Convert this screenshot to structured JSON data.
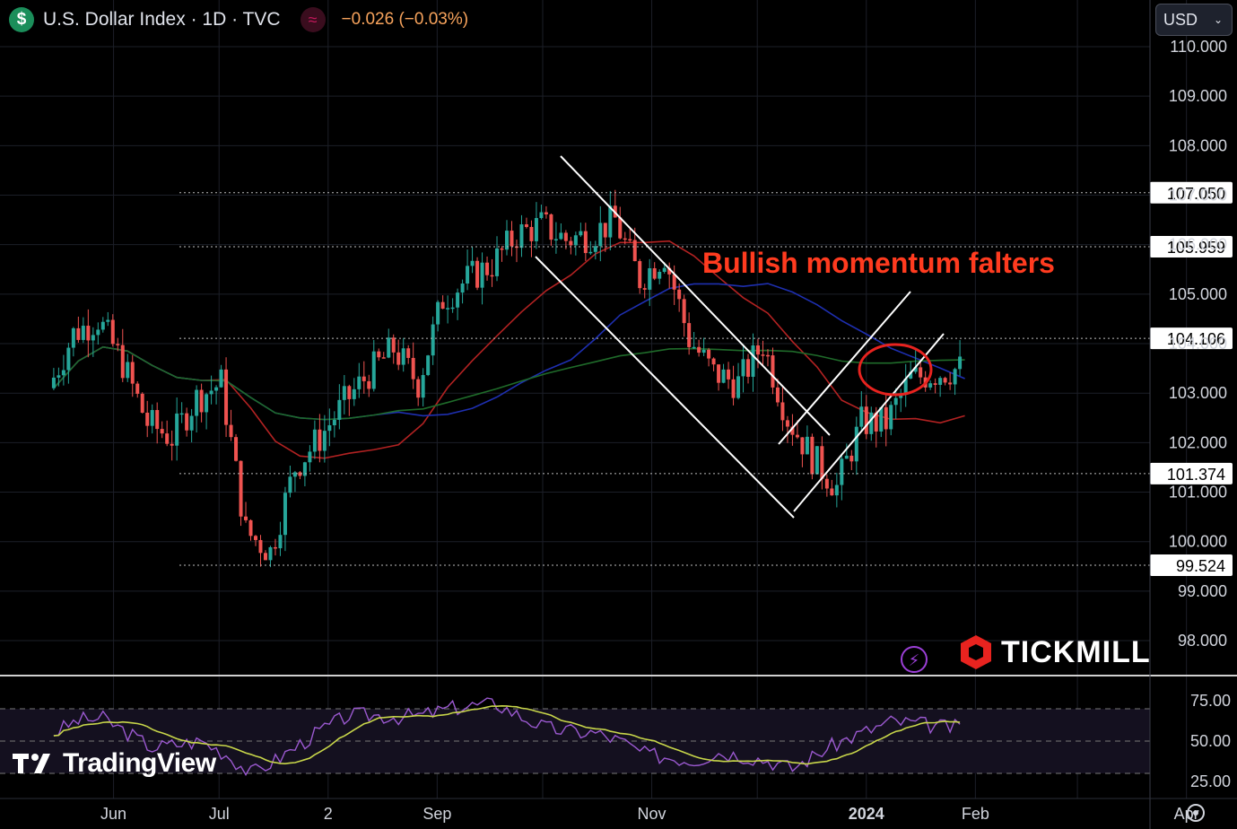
{
  "header": {
    "title": "U.S. Dollar Index · 1D · TVC",
    "change": "−0.026 (−0.03%)",
    "coin_icon": "dollar-icon",
    "indicator_icon": "wave-icon",
    "currency": "USD"
  },
  "brand": {
    "name": "TICKMILL",
    "logo": "tickmill-hexagon-icon",
    "lightning_icon": "lightning-icon"
  },
  "watermark": {
    "name": "TradingView",
    "logo": "tv-logo-icon"
  },
  "annotation": {
    "text": "Bullish momentum falters",
    "color": "#ff3b1f"
  },
  "colors": {
    "up": "#26a69a",
    "down": "#ef5350",
    "ma_red": "#b22222",
    "ma_blue": "#1e2fb0",
    "ma_green": "#1f6b2a",
    "rsi": "#9b59d0",
    "rsi_ma": "#c8d64a"
  },
  "chart_data": {
    "type": "candlestick",
    "ylim": [
      97.5,
      110.2
    ],
    "y_ticks": [
      "110.000",
      "109.000",
      "108.000",
      "107.000",
      "106.000",
      "105.000",
      "104.000",
      "103.000",
      "102.000",
      "101.000",
      "100.000",
      "99.000",
      "98.000"
    ],
    "x_ticks": [
      "Jun",
      "Jul",
      "2",
      "Sep",
      "Nov",
      "2024",
      "Feb",
      "Apr"
    ],
    "levels": [
      {
        "label": "107.050",
        "value": 107.05
      },
      {
        "label": "105.959",
        "value": 105.959
      },
      {
        "label": "104.106",
        "value": 104.106
      },
      {
        "label": "101.374",
        "value": 101.374
      },
      {
        "label": "99.524",
        "value": 99.524
      }
    ],
    "close_series": [
      {
        "date": "2023-05-15",
        "close": 103.1
      },
      {
        "date": "2023-05-22",
        "close": 104.2
      },
      {
        "date": "2023-05-29",
        "close": 104.5
      },
      {
        "date": "2023-06-05",
        "close": 103.6
      },
      {
        "date": "2023-06-12",
        "close": 102.4
      },
      {
        "date": "2023-06-19",
        "close": 102.1
      },
      {
        "date": "2023-06-26",
        "close": 102.9
      },
      {
        "date": "2023-07-03",
        "close": 103.2
      },
      {
        "date": "2023-07-10",
        "close": 100.2
      },
      {
        "date": "2023-07-17",
        "close": 99.8
      },
      {
        "date": "2023-07-24",
        "close": 101.5
      },
      {
        "date": "2023-07-31",
        "close": 102.1
      },
      {
        "date": "2023-08-07",
        "close": 102.8
      },
      {
        "date": "2023-08-14",
        "close": 103.4
      },
      {
        "date": "2023-08-21",
        "close": 103.9
      },
      {
        "date": "2023-08-28",
        "close": 103.2
      },
      {
        "date": "2023-09-04",
        "close": 104.9
      },
      {
        "date": "2023-09-11",
        "close": 105.3
      },
      {
        "date": "2023-09-18",
        "close": 105.6
      },
      {
        "date": "2023-09-25",
        "close": 106.2
      },
      {
        "date": "2023-10-02",
        "close": 106.4
      },
      {
        "date": "2023-10-09",
        "close": 106.1
      },
      {
        "date": "2023-10-16",
        "close": 106.2
      },
      {
        "date": "2023-10-23",
        "close": 106.5
      },
      {
        "date": "2023-10-30",
        "close": 105.3
      },
      {
        "date": "2023-11-06",
        "close": 105.8
      },
      {
        "date": "2023-11-13",
        "close": 104.1
      },
      {
        "date": "2023-11-20",
        "close": 103.4
      },
      {
        "date": "2023-11-27",
        "close": 103.2
      },
      {
        "date": "2023-12-04",
        "close": 104.0
      },
      {
        "date": "2023-12-11",
        "close": 102.5
      },
      {
        "date": "2023-12-18",
        "close": 101.7
      },
      {
        "date": "2023-12-25",
        "close": 101.1
      },
      {
        "date": "2024-01-01",
        "close": 102.4
      },
      {
        "date": "2024-01-08",
        "close": 102.4
      },
      {
        "date": "2024-01-15",
        "close": 103.3
      },
      {
        "date": "2024-01-22",
        "close": 103.4
      },
      {
        "date": "2024-01-29",
        "close": 103.5
      }
    ],
    "moving_averages": [
      {
        "color": "#b22222",
        "period": "50"
      },
      {
        "color": "#1e2fb0",
        "period": "100"
      },
      {
        "color": "#1f6b2a",
        "period": "200"
      }
    ],
    "rsi": {
      "ticks": [
        "75.00",
        "50.00",
        "25.00"
      ],
      "ylim": [
        20,
        80
      ],
      "levels": [
        70,
        50,
        30
      ],
      "values": [
        55,
        63,
        64,
        55,
        46,
        48,
        50,
        42,
        30,
        38,
        48,
        58,
        66,
        66,
        65,
        66,
        70,
        72,
        73,
        65,
        58,
        56,
        55,
        50,
        42,
        40,
        38,
        43,
        41,
        38,
        33,
        42,
        50,
        56,
        62,
        61,
        59,
        58
      ]
    }
  }
}
